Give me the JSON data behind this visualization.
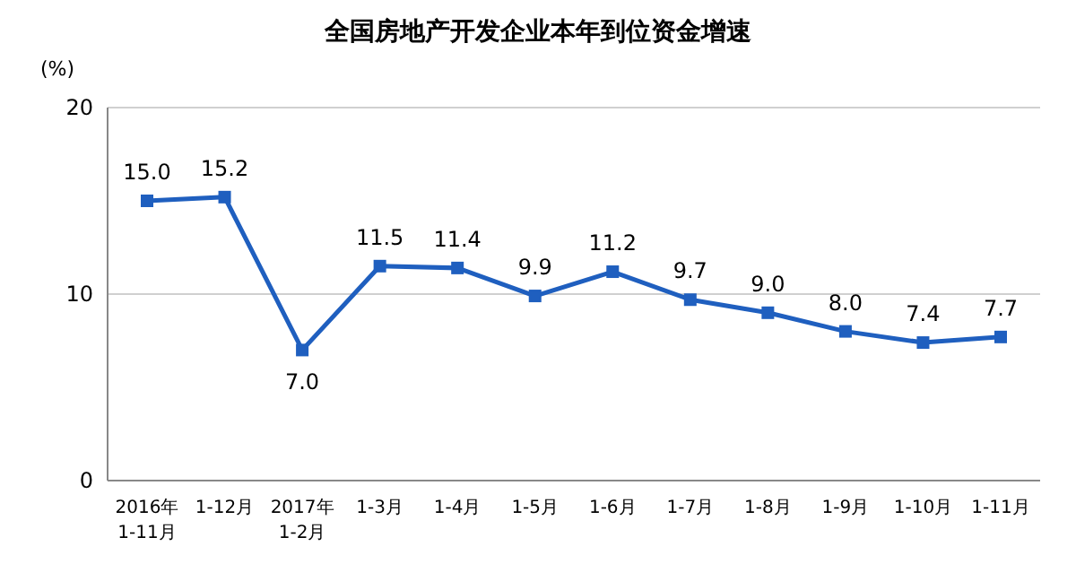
{
  "chart_data": {
    "type": "line",
    "title": "全国房地产开发企业本年到位资金增速",
    "ylabel": "(%)",
    "categories": [
      "2016年\n1-11月",
      "1-12月",
      "2017年\n1-2月",
      "1-3月",
      "1-4月",
      "1-5月",
      "1-6月",
      "1-7月",
      "1-8月",
      "1-9月",
      "1-10月",
      "1-11月"
    ],
    "series": [
      {
        "color": "#1f5fbf",
        "values": [
          15.0,
          15.2,
          7.0,
          11.5,
          11.4,
          9.9,
          11.2,
          9.7,
          9.0,
          8.0,
          7.4,
          7.7
        ],
        "value_labels": [
          "15.0",
          "15.2",
          "7.0",
          "11.5",
          "11.4",
          "9.9",
          "11.2",
          "9.7",
          "9.0",
          "8.0",
          "7.4",
          "7.7"
        ]
      }
    ],
    "ylim": [
      0,
      20
    ],
    "yticks": [
      0,
      10,
      20
    ],
    "grid": "y",
    "marker": "square",
    "line_style": "solid"
  }
}
